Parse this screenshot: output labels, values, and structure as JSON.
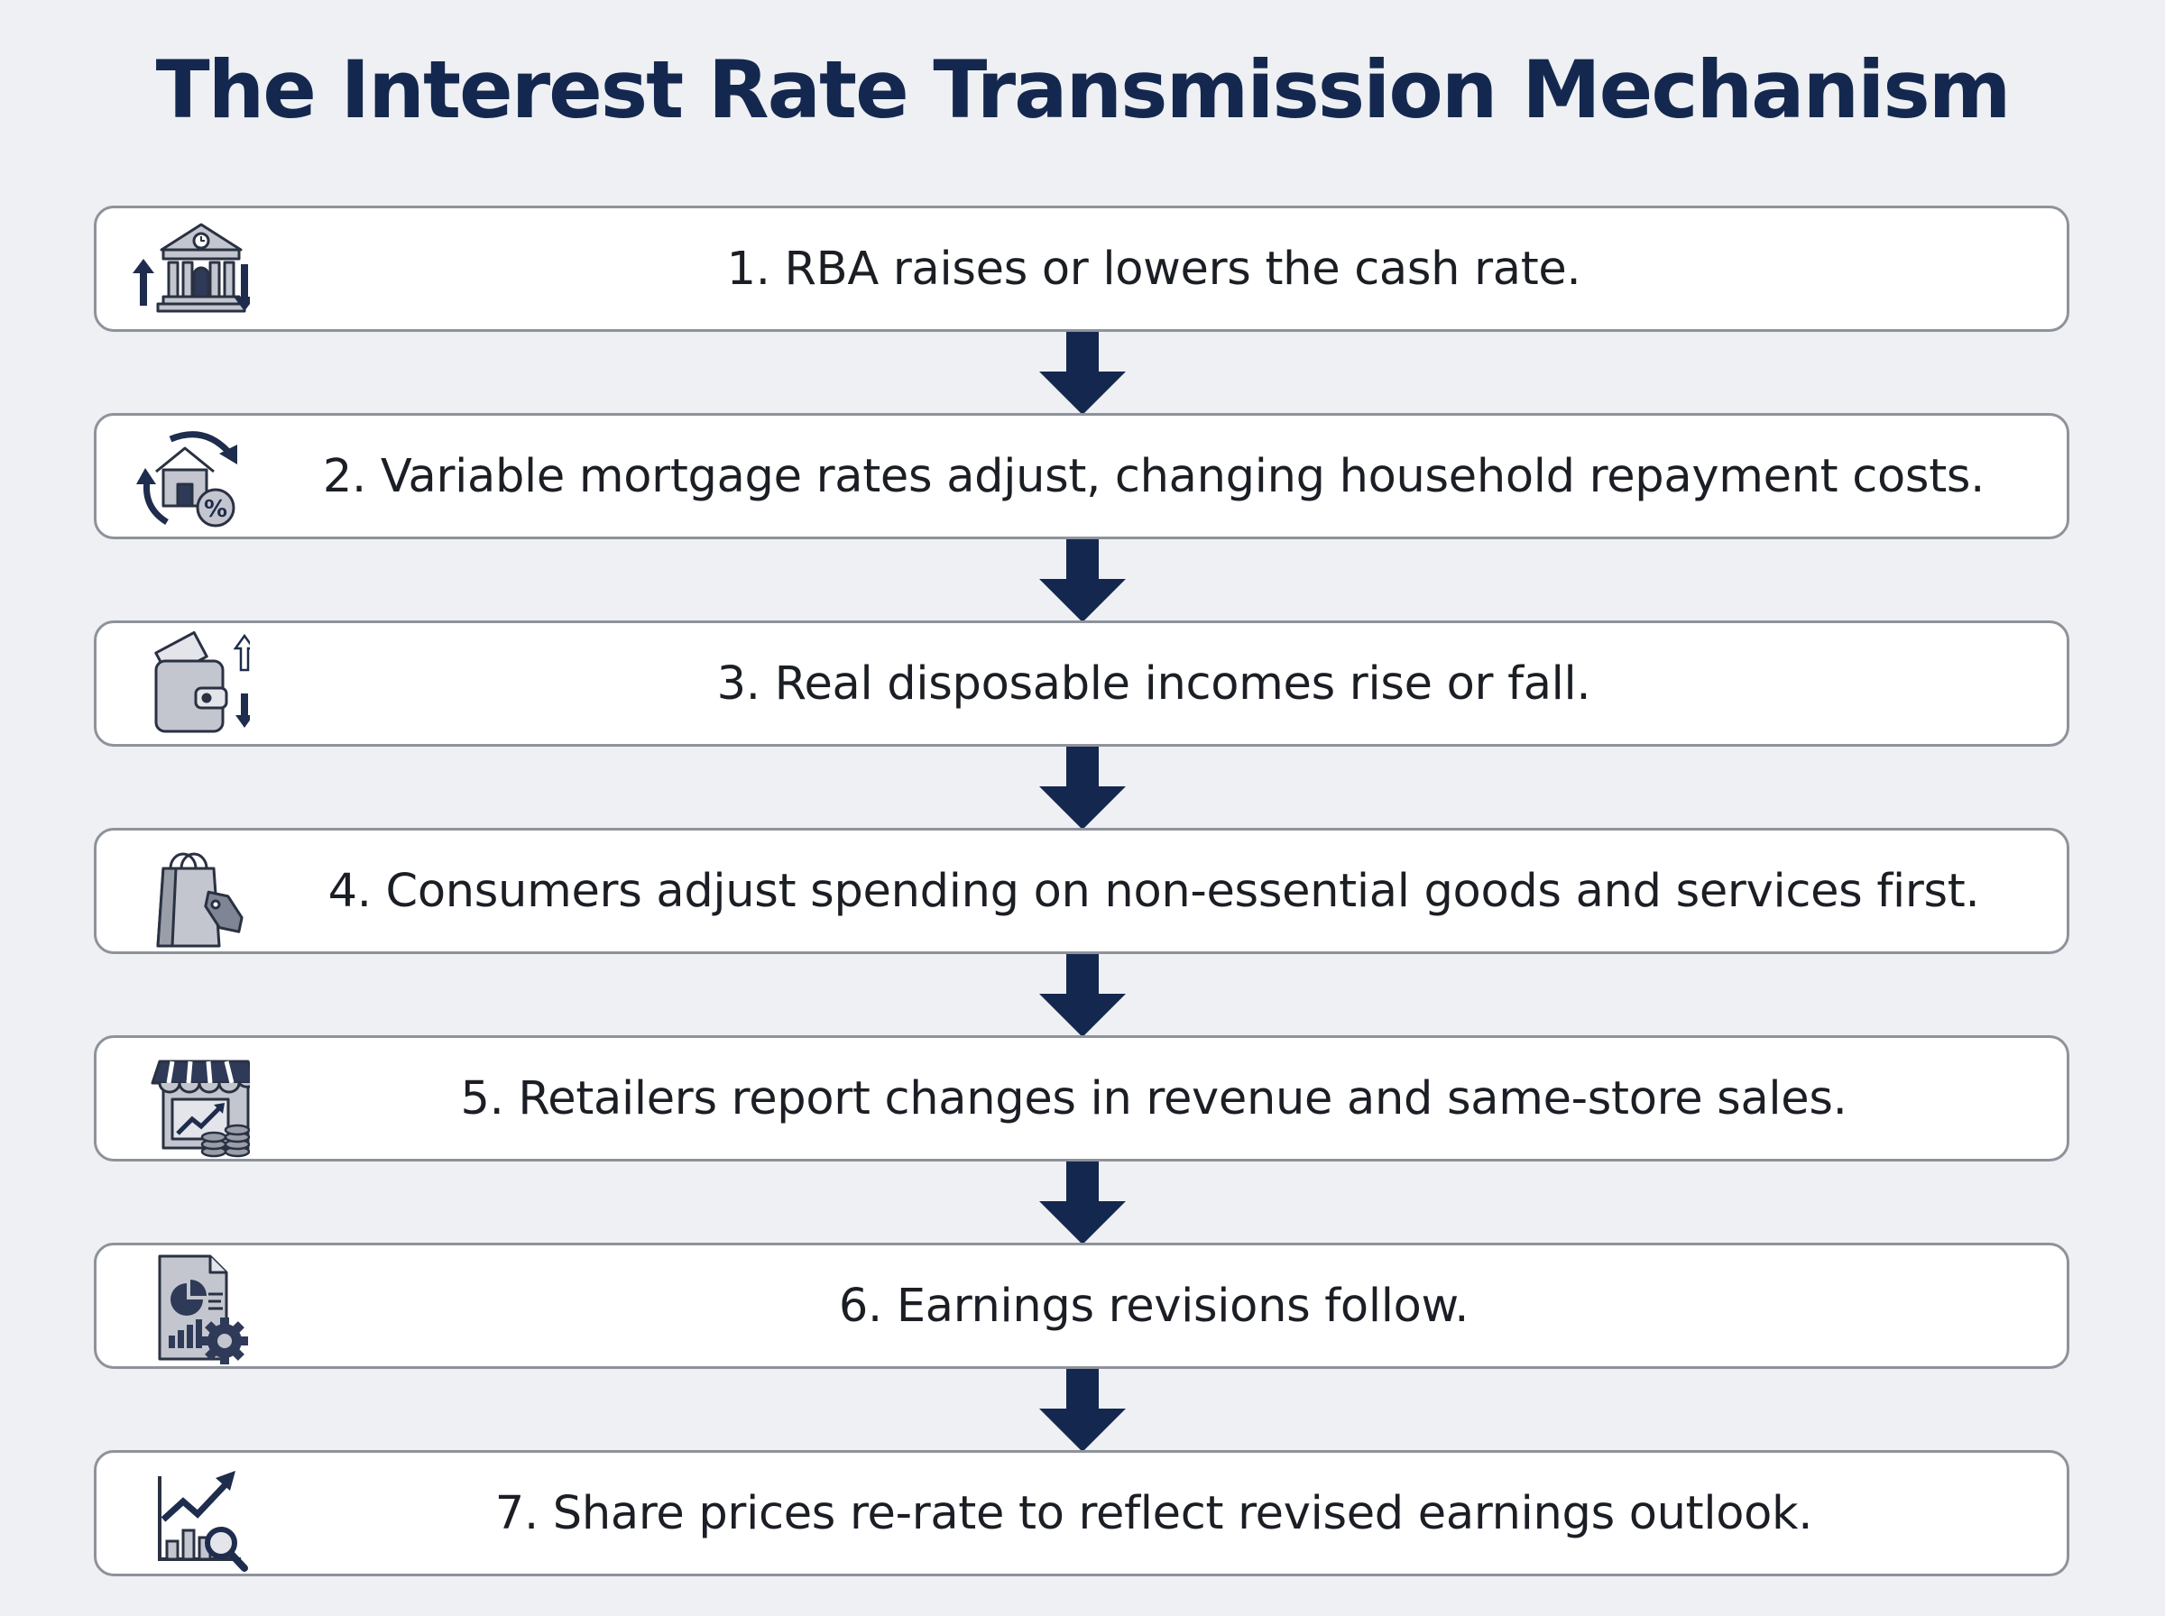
{
  "title": "The Interest Rate Transmission Mechanism",
  "steps": [
    {
      "text": "1. RBA raises or lowers the cash rate.",
      "icon": "central-bank-rate-icon"
    },
    {
      "text": "2. Variable mortgage rates adjust, changing household repayment costs.",
      "icon": "mortgage-rate-icon"
    },
    {
      "text": "3. Real disposable incomes rise or fall.",
      "icon": "wallet-income-icon"
    },
    {
      "text": "4. Consumers adjust spending on non-essential goods and services first.",
      "icon": "shopping-bag-tag-icon"
    },
    {
      "text": "5. Retailers report changes in revenue and same-store sales.",
      "icon": "storefront-revenue-icon"
    },
    {
      "text": "6. Earnings revisions follow.",
      "icon": "earnings-report-icon"
    },
    {
      "text": "7. Share prices re-rate to reflect revised earnings outlook.",
      "icon": "share-price-chart-icon"
    }
  ],
  "colors": {
    "navy": "#14284f",
    "icon_fill": "#c3c6ce",
    "icon_stroke": "#2a3142",
    "border": "#8e929a"
  }
}
